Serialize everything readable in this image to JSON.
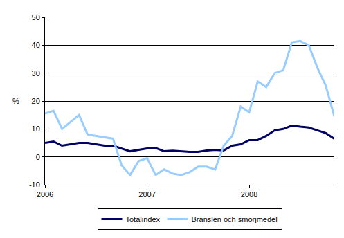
{
  "chart_data": {
    "type": "line",
    "y_label": "%",
    "categories": [
      "2006",
      null,
      null,
      null,
      null,
      null,
      null,
      null,
      null,
      null,
      null,
      null,
      "2007",
      null,
      null,
      null,
      null,
      null,
      null,
      null,
      null,
      null,
      null,
      null,
      "2008",
      null,
      null,
      null,
      null,
      null,
      null,
      null,
      null,
      null,
      null
    ],
    "series": [
      {
        "name": "Totalindex",
        "color": "#000066",
        "values": [
          5,
          5.5,
          4,
          4.5,
          5,
          5,
          4.5,
          4,
          4,
          3,
          2,
          2.5,
          3,
          3.2,
          2,
          2.2,
          2,
          1.8,
          1.8,
          2.3,
          2.5,
          2.3,
          4,
          4.5,
          6,
          6,
          7.5,
          9.5,
          10,
          11.2,
          10.8,
          10.5,
          9.5,
          8.5,
          6.5
        ]
      },
      {
        "name": "Bränslen och smörjmedel",
        "color": "#99ccff",
        "values": [
          15.5,
          16.5,
          10,
          12.5,
          15,
          8,
          7.5,
          7,
          6.5,
          -3,
          -6.5,
          -1.5,
          -0.5,
          -6.5,
          -4.5,
          -6,
          -6.5,
          -5.5,
          -3.5,
          -3.5,
          -4.5,
          4,
          7.5,
          18,
          16,
          27,
          25,
          30,
          31,
          41,
          41.5,
          40,
          32,
          25.5,
          14.5
        ]
      }
    ],
    "ylim": [
      -10,
      50
    ],
    "yticks": [
      -10,
      0,
      10,
      20,
      30,
      40,
      50
    ],
    "grid": true,
    "legend": "bottom"
  }
}
